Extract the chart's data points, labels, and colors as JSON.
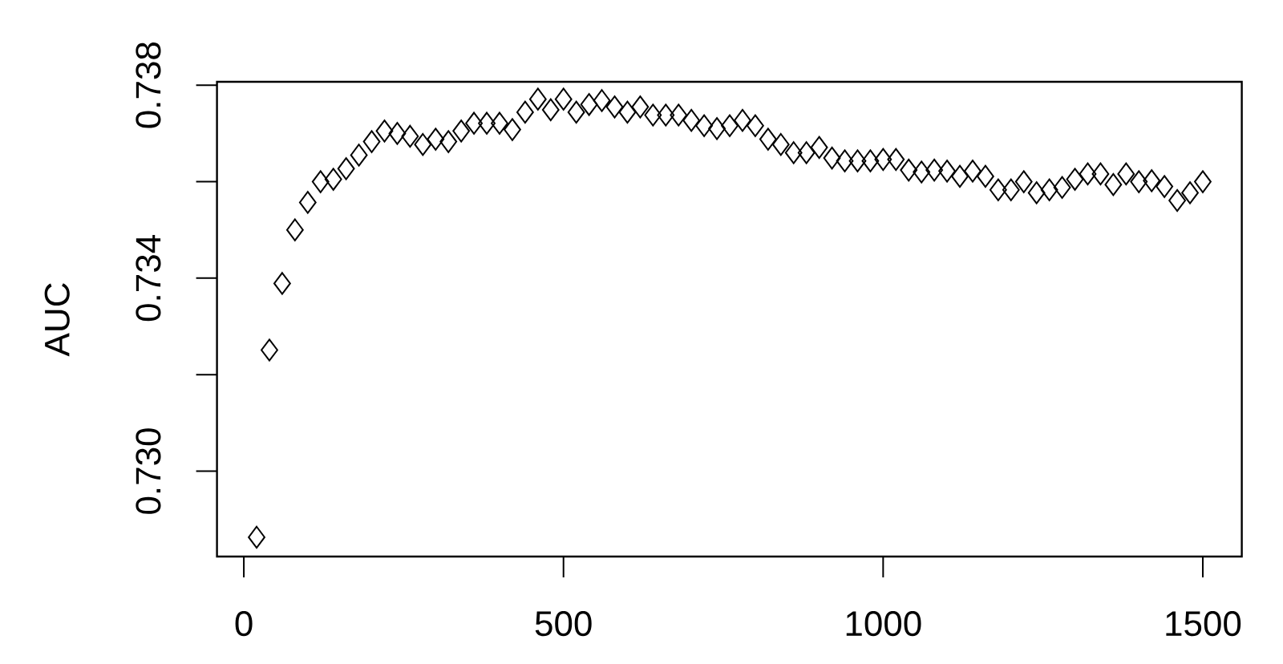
{
  "chart_data": {
    "type": "scatter",
    "ylabel": "AUC",
    "marker": "diamond",
    "color": "#000000",
    "x": [
      20,
      40,
      60,
      80,
      100,
      120,
      140,
      160,
      180,
      200,
      220,
      240,
      260,
      280,
      300,
      320,
      340,
      360,
      380,
      400,
      420,
      440,
      460,
      480,
      500,
      520,
      540,
      560,
      580,
      600,
      620,
      640,
      660,
      680,
      700,
      720,
      740,
      760,
      780,
      800,
      820,
      840,
      860,
      880,
      900,
      920,
      940,
      960,
      980,
      1000,
      1020,
      1040,
      1060,
      1080,
      1100,
      1120,
      1140,
      1160,
      1180,
      1200,
      1220,
      1240,
      1260,
      1280,
      1300,
      1320,
      1340,
      1360,
      1380,
      1400,
      1420,
      1440,
      1460,
      1480,
      1500
    ],
    "values": [
      0.72863,
      0.73251,
      0.73389,
      0.735,
      0.73557,
      0.736,
      0.73605,
      0.73627,
      0.73655,
      0.73683,
      0.73705,
      0.737,
      0.73694,
      0.73677,
      0.73688,
      0.73683,
      0.73705,
      0.73721,
      0.73721,
      0.73721,
      0.73708,
      0.73744,
      0.73771,
      0.73749,
      0.73771,
      0.73744,
      0.7376,
      0.73768,
      0.73755,
      0.73744,
      0.73755,
      0.73738,
      0.73738,
      0.73738,
      0.73727,
      0.73716,
      0.7371,
      0.73716,
      0.73727,
      0.73716,
      0.73688,
      0.73677,
      0.7366,
      0.7366,
      0.73671,
      0.73649,
      0.73643,
      0.73643,
      0.73643,
      0.73646,
      0.73646,
      0.73624,
      0.7362,
      0.73624,
      0.73622,
      0.73611,
      0.73622,
      0.73611,
      0.73583,
      0.73583,
      0.736,
      0.73577,
      0.73583,
      0.73588,
      0.73605,
      0.73616,
      0.73616,
      0.73594,
      0.73616,
      0.736,
      0.73602,
      0.7359,
      0.73561,
      0.73577,
      0.736
    ],
    "xlim": [
      -42,
      1561
    ],
    "ylim": [
      0.72823,
      0.73807
    ],
    "xticks": [
      0,
      500,
      1000,
      1500
    ],
    "yticks": [
      {
        "value": 0.73,
        "label": "0.730"
      },
      {
        "value": 0.732,
        "label": null
      },
      {
        "value": 0.734,
        "label": "0.734"
      },
      {
        "value": 0.736,
        "label": null
      },
      {
        "value": 0.738,
        "label": "0.738"
      }
    ]
  }
}
